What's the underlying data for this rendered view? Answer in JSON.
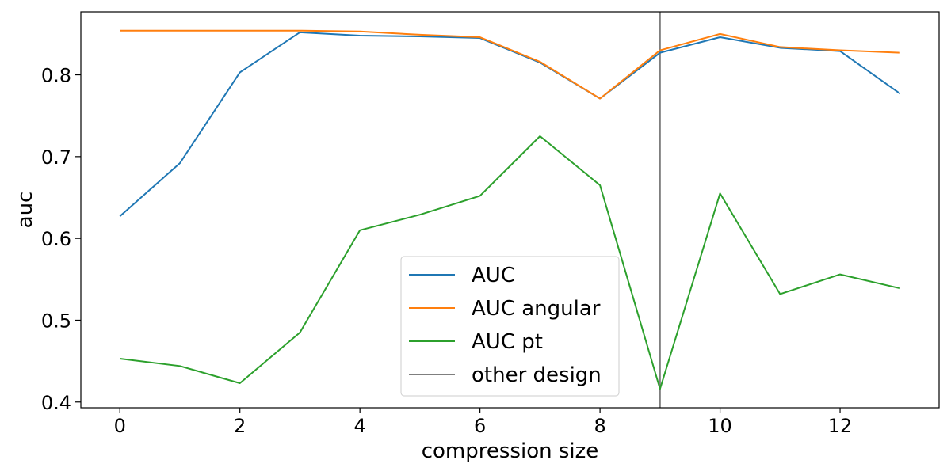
{
  "chart_data": {
    "type": "line",
    "title": "",
    "xlabel": "compression size",
    "ylabel": "auc",
    "xlim": [
      -0.65,
      13.65
    ],
    "ylim": [
      0.393,
      0.877
    ],
    "x_ticks": [
      0,
      2,
      4,
      6,
      8,
      10,
      12
    ],
    "y_ticks": [
      0.4,
      0.5,
      0.6,
      0.7,
      0.8
    ],
    "y_tick_labels": [
      "0.4",
      "0.5",
      "0.6",
      "0.7",
      "0.8"
    ],
    "grid": false,
    "legend_position": "lower-center",
    "x": [
      0,
      1,
      2,
      3,
      4,
      5,
      6,
      7,
      8,
      9,
      10,
      11,
      12,
      13
    ],
    "series": [
      {
        "name": "AUC",
        "color": "#1f77b4",
        "values": [
          0.627,
          0.692,
          0.803,
          0.852,
          0.848,
          0.847,
          0.845,
          0.815,
          0.771,
          0.827,
          0.846,
          0.833,
          0.829,
          0.777
        ]
      },
      {
        "name": "AUC angular",
        "color": "#ff7f0e",
        "values": [
          0.854,
          0.854,
          0.854,
          0.854,
          0.853,
          0.849,
          0.846,
          0.816,
          0.771,
          0.83,
          0.85,
          0.834,
          0.83,
          0.827
        ]
      },
      {
        "name": "AUC pt",
        "color": "#2ca02c",
        "values": [
          0.453,
          0.444,
          0.423,
          0.485,
          0.61,
          0.629,
          0.652,
          0.725,
          0.665,
          0.416,
          0.655,
          0.532,
          0.556,
          0.539
        ]
      }
    ],
    "vertical_lines": [
      {
        "name": "other design",
        "x": 9,
        "color": "#7f7f7f"
      }
    ]
  }
}
